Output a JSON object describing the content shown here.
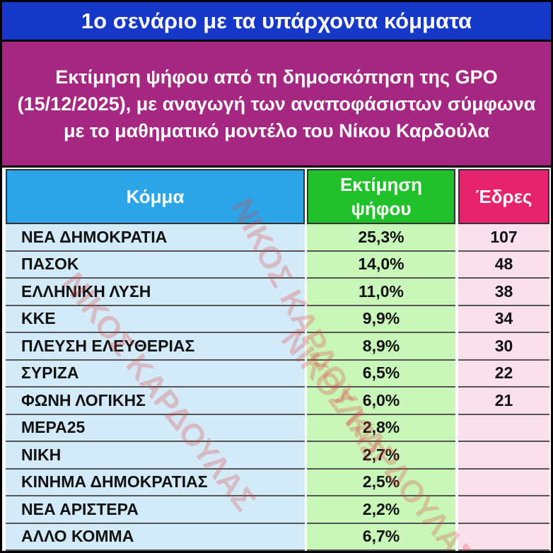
{
  "header": {
    "title": "1ο σενάριο με τα υπάρχοντα κόμματα",
    "subtitle": "Εκτίμηση ψήφου από τη δημοσκόπηση της GPO (15/12/2025), με αναγωγή των αναποφάσιστων σύμφωνα με το μαθηματικό μοντέλο του Νίκου Καρδούλα"
  },
  "table": {
    "headers": [
      "Κόμμα",
      "Εκτίμηση ψήφου",
      "Έδρες"
    ],
    "rows": [
      [
        "ΝΕΑ ΔΗΜΟΚΡΑΤΙΑ",
        "25,3%",
        "107"
      ],
      [
        "ΠΑΣΟΚ",
        "14,0%",
        "48"
      ],
      [
        "ΕΛΛΗΝΙΚΗ ΛΥΣΗ",
        "11,0%",
        "38"
      ],
      [
        "ΚΚΕ",
        "9,9%",
        "34"
      ],
      [
        "ΠΛΕΥΣΗ ΕΛΕΥΘΕΡΙΑΣ",
        "8,9%",
        "30"
      ],
      [
        "ΣΥΡΙΖΑ",
        "6,5%",
        "22"
      ],
      [
        "ΦΩΝΗ ΛΟΓΙΚΗΣ",
        "6,0%",
        "21"
      ],
      [
        "ΜΕΡΑ25",
        "2,8%"
      ],
      [
        "ΝΙΚΗ",
        "2,7%"
      ],
      [
        "ΚΙΝΗΜΑ ΔΗΜΟΚΡΑΤΙΑΣ",
        "2,5%"
      ],
      [
        "ΝΕΑ ΑΡΙΣΤΕΡΑ",
        "2,2%"
      ],
      [
        "ΑΛΛΟ ΚΟΜΜΑ",
        "6,7%"
      ]
    ]
  },
  "watermark": "ΝΙΚΟΣ ΚΑΡΔΟΥΛΑΣ"
}
